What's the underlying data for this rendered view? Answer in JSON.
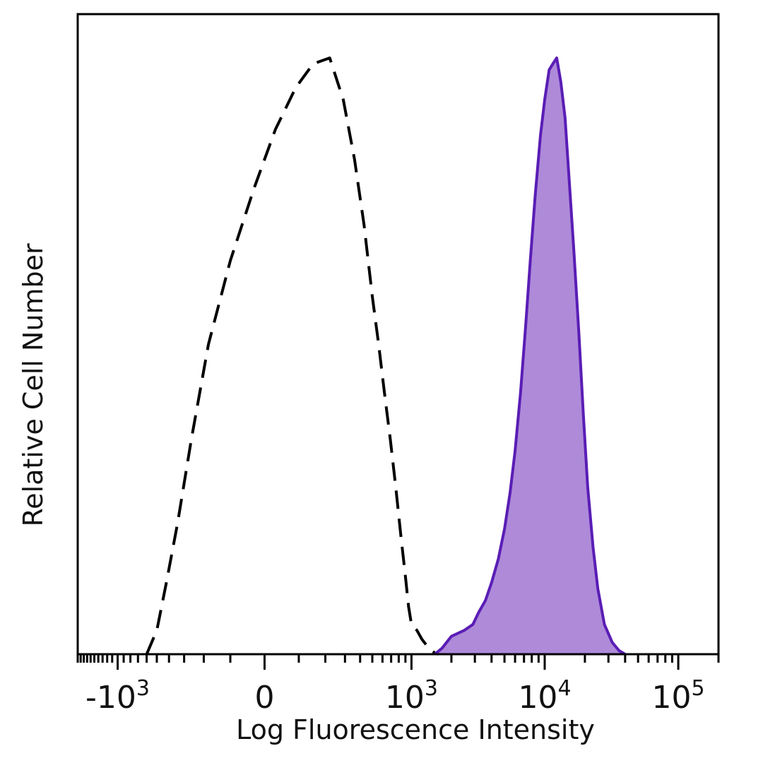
{
  "chart_data": {
    "type": "area",
    "title": "",
    "xlabel": "Log Fluorescence Intensity",
    "ylabel": "Relative Cell Number",
    "x_scale": "biexponential",
    "xlim": [
      -2000,
      200000
    ],
    "ylim": [
      0,
      100
    ],
    "grid": false,
    "legend": "none",
    "x_ticks": [
      {
        "base": "-10",
        "exp": "3",
        "value": -1000
      },
      {
        "base": "0",
        "exp": "",
        "value": 0
      },
      {
        "base": "10",
        "exp": "3",
        "value": 1000
      },
      {
        "base": "10",
        "exp": "4",
        "value": 10000
      },
      {
        "base": "10",
        "exp": "5",
        "value": 100000
      }
    ],
    "series": [
      {
        "style": "dashed-outline",
        "color": "#000000",
        "points": [
          [
            -600,
            0
          ],
          [
            -500,
            4
          ],
          [
            -420,
            12
          ],
          [
            -340,
            22
          ],
          [
            -260,
            36
          ],
          [
            -180,
            52
          ],
          [
            -100,
            66
          ],
          [
            -30,
            78
          ],
          [
            30,
            88
          ],
          [
            90,
            95
          ],
          [
            150,
            99
          ],
          [
            220,
            100
          ],
          [
            290,
            93
          ],
          [
            360,
            83
          ],
          [
            430,
            72
          ],
          [
            500,
            60
          ],
          [
            560,
            52
          ],
          [
            620,
            44
          ],
          [
            690,
            36
          ],
          [
            760,
            28
          ],
          [
            830,
            20
          ],
          [
            900,
            13
          ],
          [
            950,
            8
          ],
          [
            1000,
            5
          ],
          [
            1100,
            4
          ],
          [
            1200,
            2.5
          ],
          [
            1300,
            1.5
          ],
          [
            1400,
            0.8
          ],
          [
            1500,
            0.2
          ],
          [
            1600,
            0
          ]
        ]
      },
      {
        "style": "filled",
        "color": "#5a1db5",
        "fill": "#ae8ad9",
        "points": [
          [
            1500,
            0
          ],
          [
            1700,
            1
          ],
          [
            2000,
            3
          ],
          [
            2500,
            4
          ],
          [
            2900,
            5
          ],
          [
            3200,
            7
          ],
          [
            3600,
            9
          ],
          [
            4000,
            12
          ],
          [
            4500,
            16
          ],
          [
            5000,
            21
          ],
          [
            5500,
            27
          ],
          [
            6000,
            34
          ],
          [
            6600,
            44
          ],
          [
            7200,
            55
          ],
          [
            7800,
            66
          ],
          [
            8500,
            77
          ],
          [
            9300,
            87
          ],
          [
            10000,
            93
          ],
          [
            10800,
            98
          ],
          [
            11500,
            99
          ],
          [
            12300,
            100
          ],
          [
            13200,
            96
          ],
          [
            14200,
            90
          ],
          [
            15200,
            80
          ],
          [
            16500,
            68
          ],
          [
            18000,
            54
          ],
          [
            19500,
            40
          ],
          [
            21000,
            28
          ],
          [
            23000,
            18
          ],
          [
            25000,
            11
          ],
          [
            28000,
            5
          ],
          [
            32000,
            2
          ],
          [
            36000,
            0.6
          ],
          [
            40000,
            0
          ]
        ]
      }
    ]
  }
}
